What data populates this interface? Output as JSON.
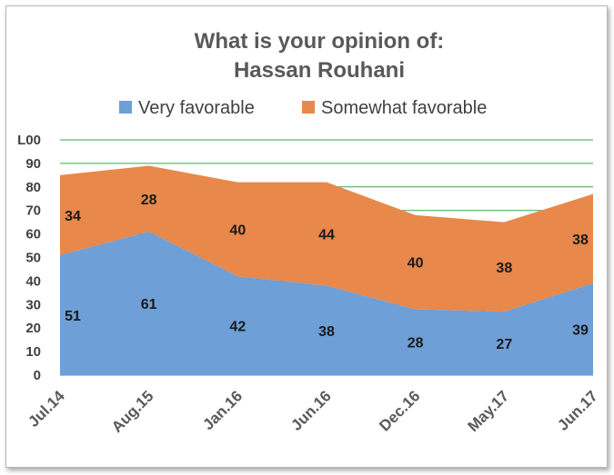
{
  "chart_data": {
    "type": "area",
    "stacked": true,
    "title_lines": [
      "What is your opinion of:",
      "Hassan Rouhani"
    ],
    "categories": [
      "Jul.14",
      "Aug.15",
      "Jan.16",
      "Jun.16",
      "Dec.16",
      "May.17",
      "Jun.17"
    ],
    "series": [
      {
        "name": "Very favorable",
        "color": "#6e9fd6",
        "values": [
          51,
          61,
          42,
          38,
          28,
          27,
          39
        ]
      },
      {
        "name": "Somewhat favorable",
        "color": "#e8884a",
        "values": [
          34,
          28,
          40,
          44,
          40,
          38,
          38
        ]
      }
    ],
    "ylim": [
      0,
      100
    ],
    "ytick_labels": [
      "0",
      "10",
      "20",
      "30",
      "40",
      "50",
      "60",
      "70",
      "80",
      "90",
      "L00"
    ],
    "grid": true,
    "grid_color": "#3aa64a",
    "legend_position": "top"
  }
}
